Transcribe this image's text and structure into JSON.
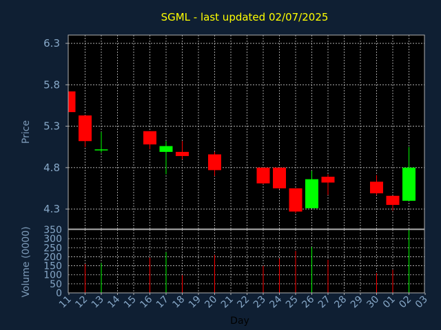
{
  "chart_data": {
    "type": "candlestick",
    "title": "SGML - last updated 02/07/2025",
    "xlabel": "Day",
    "price_axis": {
      "label": "Price",
      "ylim": [
        4.06,
        6.4
      ],
      "ticks": [
        "6.3",
        "5.8",
        "5.3",
        "4.8",
        "4.3"
      ],
      "tick_values": [
        6.3,
        5.8,
        5.3,
        4.8,
        4.3
      ]
    },
    "volume_axis": {
      "label": "Volume (0000)",
      "ylim": [
        0,
        350
      ],
      "ticks": [
        "350",
        "300",
        "250",
        "200",
        "150",
        "100",
        "50",
        "0"
      ],
      "tick_values": [
        350,
        300,
        250,
        200,
        150,
        100,
        50,
        0
      ]
    },
    "days": [
      "11",
      "12",
      "13",
      "14",
      "15",
      "16",
      "17",
      "18",
      "19",
      "20",
      "21",
      "22",
      "23",
      "24",
      "25",
      "26",
      "27",
      "28",
      "29",
      "30",
      "01",
      "02",
      "03"
    ],
    "grid": true,
    "colors": {
      "background": "#0f1f33",
      "plot": "#000000",
      "frame": "#b0b0b0",
      "grid": "#c8c8c8",
      "title": "#ffff00",
      "axis_text": "#87a8c8",
      "axis_label": "#7d9ab8",
      "xlabel": "#000000",
      "up": "#00ff00",
      "down": "#ff0000"
    },
    "candles": [
      {
        "day": "11",
        "open": 5.72,
        "high": 5.72,
        "low": 5.47,
        "close": 5.47,
        "volume": 0
      },
      {
        "day": "12",
        "open": 5.43,
        "high": 5.43,
        "low": 5.05,
        "close": 5.12,
        "volume": 160
      },
      {
        "day": "13",
        "open": 5.01,
        "high": 5.23,
        "low": 4.98,
        "close": 5.02,
        "volume": 165
      },
      {
        "day": "16",
        "open": 5.24,
        "high": 5.24,
        "low": 5.02,
        "close": 5.08,
        "volume": 195
      },
      {
        "day": "17",
        "open": 4.99,
        "high": 5.12,
        "low": 4.72,
        "close": 5.06,
        "volume": 225
      },
      {
        "day": "18",
        "open": 4.99,
        "high": 5.12,
        "low": 4.9,
        "close": 4.94,
        "volume": 98
      },
      {
        "day": "20",
        "open": 4.96,
        "high": 4.99,
        "low": 4.7,
        "close": 4.77,
        "volume": 210
      },
      {
        "day": "23",
        "open": 4.8,
        "high": 4.8,
        "low": 4.6,
        "close": 4.61,
        "volume": 150
      },
      {
        "day": "24",
        "open": 4.8,
        "high": 4.8,
        "low": 4.54,
        "close": 4.55,
        "volume": 190
      },
      {
        "day": "25",
        "open": 4.55,
        "high": 4.55,
        "low": 4.25,
        "close": 4.27,
        "volume": 232
      },
      {
        "day": "26",
        "open": 4.31,
        "high": 4.76,
        "low": 4.31,
        "close": 4.66,
        "volume": 255
      },
      {
        "day": "27",
        "open": 4.69,
        "high": 4.72,
        "low": 4.47,
        "close": 4.62,
        "volume": 183
      },
      {
        "day": "30",
        "open": 4.63,
        "high": 4.71,
        "low": 4.47,
        "close": 4.49,
        "volume": 110
      },
      {
        "day": "01",
        "open": 4.46,
        "high": 4.46,
        "low": 4.28,
        "close": 4.35,
        "volume": 128
      },
      {
        "day": "02",
        "open": 4.4,
        "high": 5.05,
        "low": 4.4,
        "close": 4.8,
        "volume": 350
      }
    ]
  }
}
